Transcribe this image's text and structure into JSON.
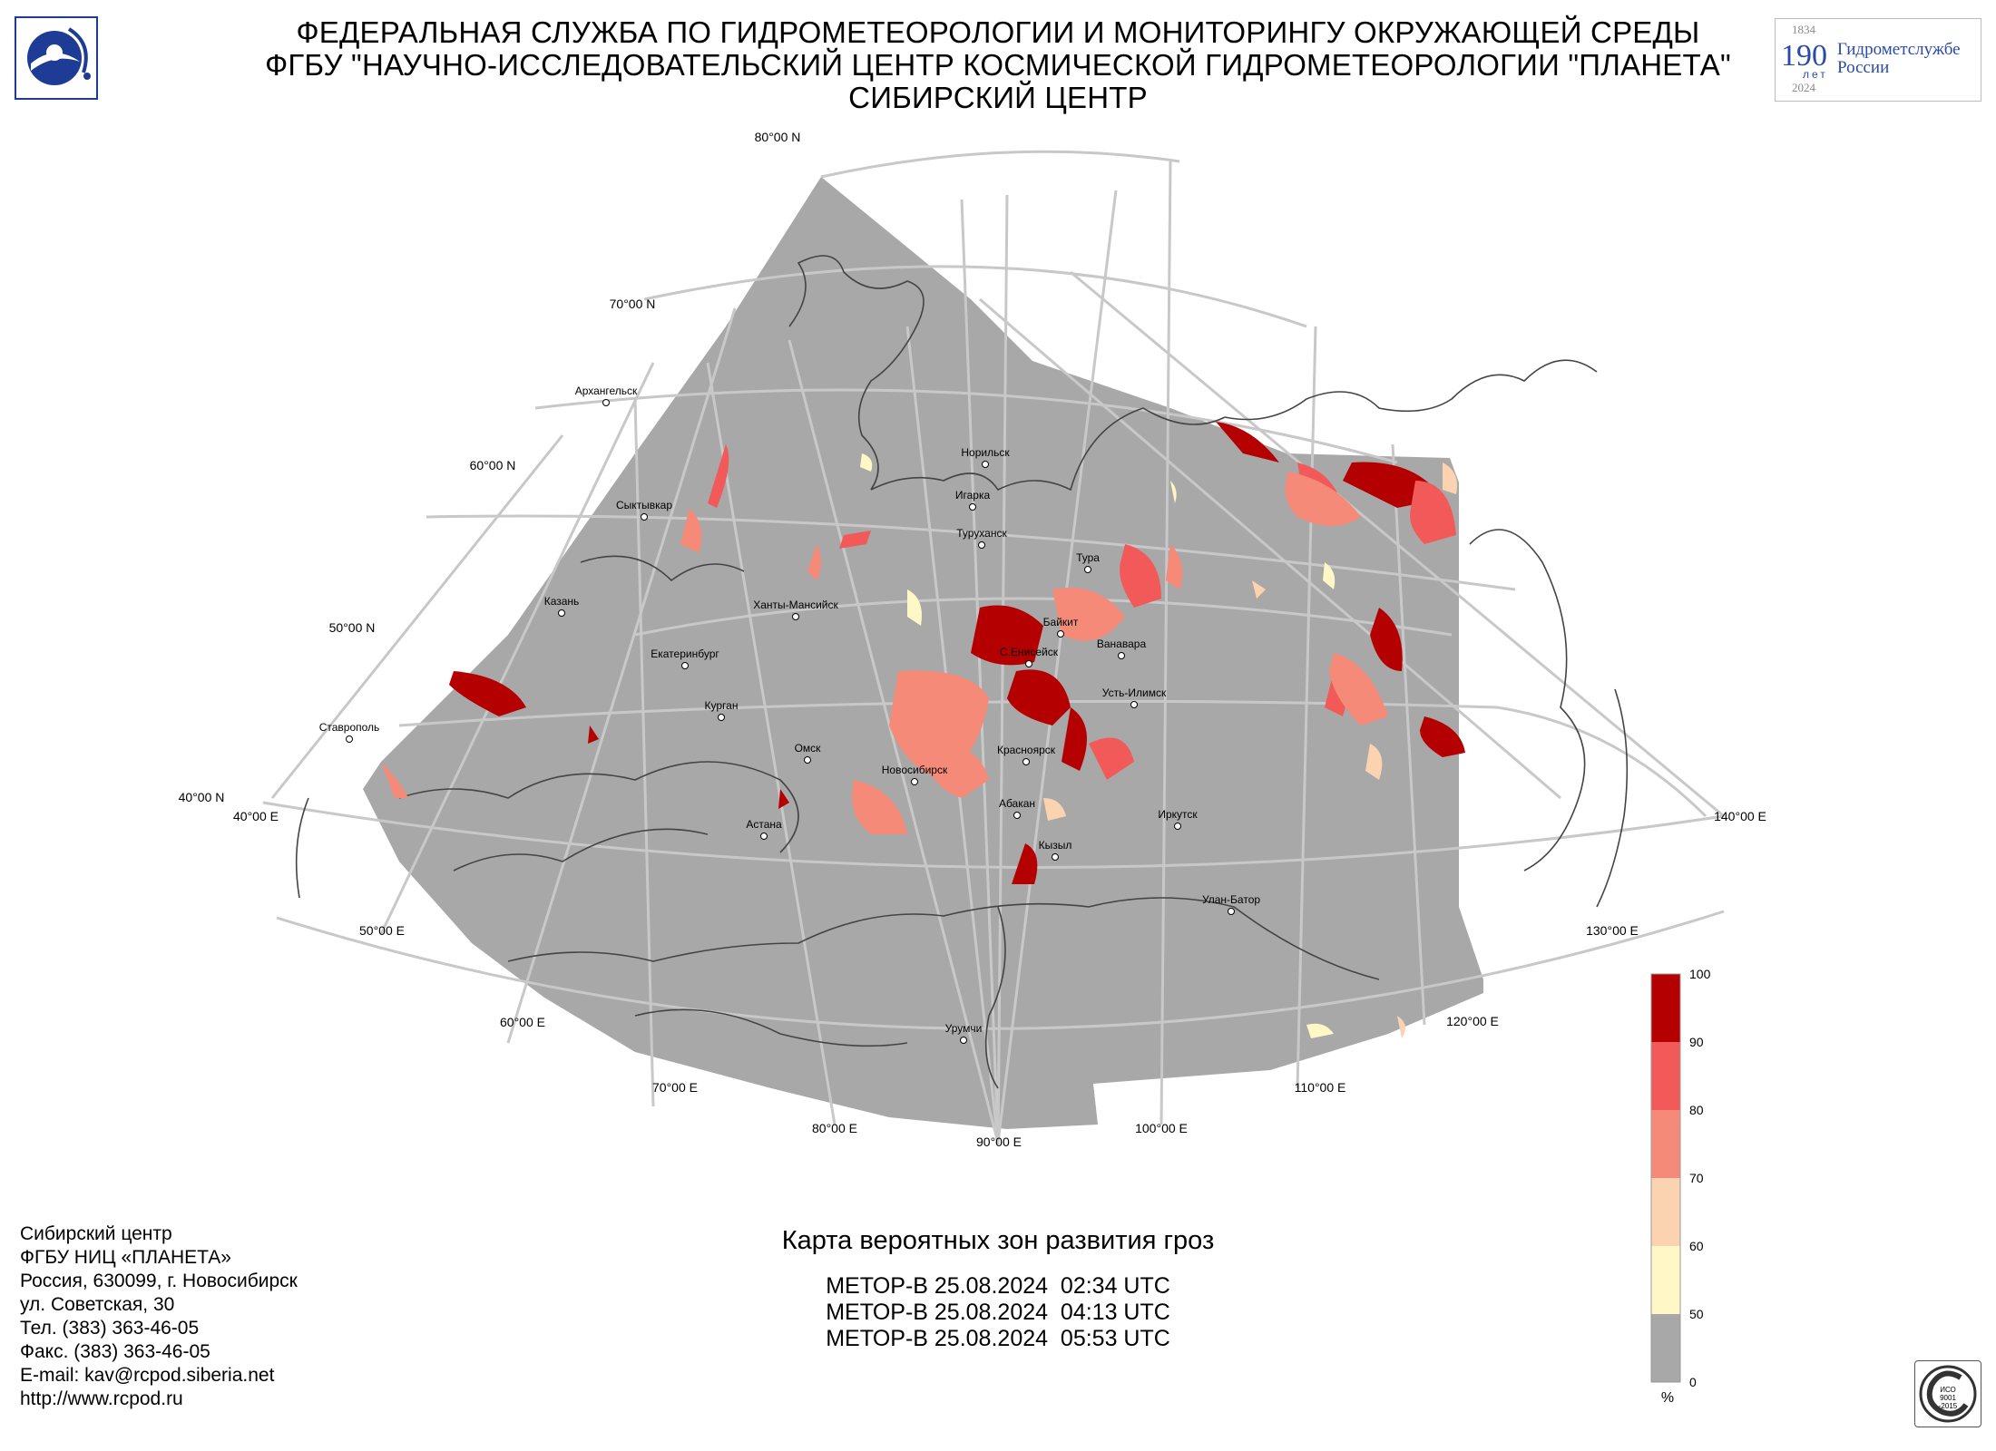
{
  "header": {
    "line1": "ФЕДЕРАЛЬНАЯ СЛУЖБА ПО ГИДРОМЕТЕОРОЛОГИИ И МОНИТОРИНГУ ОКРУЖАЮЩЕЙ СРЕДЫ",
    "line2": "ФГБУ \"НАУЧНО-ИССЛЕДОВАТЕЛЬСКИЙ ЦЕНТР КОСМИЧЕСКОЙ ГИДРОМЕТЕОРОЛОГИИ \"ПЛАНЕТА\"",
    "line3": "СИБИРСКИЙ ЦЕНТР"
  },
  "anniversary_logo": {
    "year_start": "1834",
    "number": "190",
    "unit": "лет",
    "text_line1": "Гидрометслужбе",
    "text_line2": "России",
    "year_end": "2024"
  },
  "map": {
    "latitude_labels": [
      "80°00 N",
      "70°00 N",
      "60°00 N",
      "50°00 N",
      "40°00 N"
    ],
    "longitude_labels": [
      "40°00 E",
      "50°00 E",
      "60°00 E",
      "70°00 E",
      "80°00 E",
      "90°00 E",
      "100°00 E",
      "110°00 E",
      "120°00 E",
      "130°00 E",
      "140°00 E"
    ],
    "cities": [
      {
        "name": "Архангельск"
      },
      {
        "name": "Норильск"
      },
      {
        "name": "Игарка"
      },
      {
        "name": "Туруханск"
      },
      {
        "name": "Сыктывкар"
      },
      {
        "name": "Тура"
      },
      {
        "name": "Казань"
      },
      {
        "name": "Ханты-Мансийск"
      },
      {
        "name": "Байкит"
      },
      {
        "name": "Ванавара"
      },
      {
        "name": "Екатеринбург"
      },
      {
        "name": "С.Енисейск"
      },
      {
        "name": "Усть-Илимск"
      },
      {
        "name": "Курган"
      },
      {
        "name": "Ставрополь"
      },
      {
        "name": "Омск"
      },
      {
        "name": "Красноярск"
      },
      {
        "name": "Новосибирск"
      },
      {
        "name": "Абакан"
      },
      {
        "name": "Иркутск"
      },
      {
        "name": "Астана"
      },
      {
        "name": "Кызыл"
      },
      {
        "name": "Улан-Батор"
      },
      {
        "name": "Урумчи"
      }
    ]
  },
  "contacts": [
    "Сибирский центр",
    "ФГБУ НИЦ «ПЛАНЕТА»",
    "Россия, 630099, г. Новосибирск",
    "ул. Советская, 30",
    "Тел. (383) 363-46-05",
    "Факс. (383) 363-46-05",
    "E-mail: kav@rcpod.siberia.net",
    "http://www.rcpod.ru"
  ],
  "caption": {
    "title": "Карта вероятных зон развития гроз",
    "passes": [
      "МЕТОР-В 25.08.2024  02:34 UTC",
      "МЕТОР-В 25.08.2024  04:13 UTC",
      "МЕТОР-В 25.08.2024  05:53 UTC"
    ]
  },
  "legend": {
    "unit": "%",
    "ticks": [
      "100",
      "90",
      "80",
      "70",
      "60",
      "50",
      "0"
    ],
    "colors": [
      "#b40000",
      "#f25a5a",
      "#f58a78",
      "#fcd3b0",
      "#fff7c6",
      "#a8a8a8"
    ]
  },
  "iso_badge": {
    "line1": "ИСО",
    "line2": "9001",
    "line3": "-2015"
  }
}
